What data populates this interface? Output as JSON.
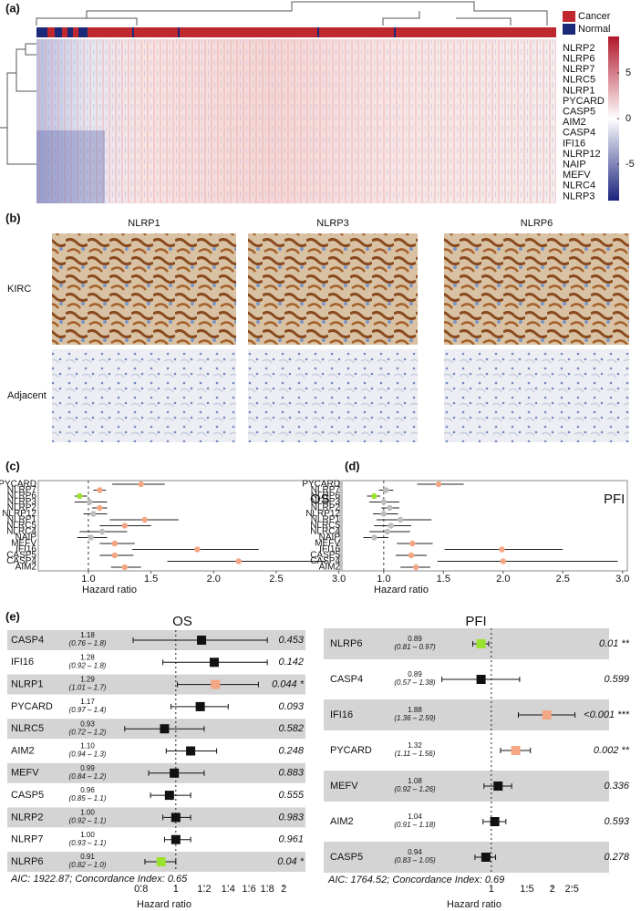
{
  "panel_a": {
    "label": "(a)",
    "legend": [
      {
        "name": "Cancer",
        "color": "#c0282f"
      },
      {
        "name": "Normal",
        "color": "#1b2a78"
      }
    ],
    "genes": [
      "NLRP2",
      "NLRP6",
      "NLRP7",
      "NLRC5",
      "NLRP1",
      "PYCARD",
      "CASP5",
      "AIM2",
      "CASP4",
      "IFI16",
      "NLRP12",
      "NAIP",
      "MEFV",
      "NLRC4",
      "NLRP3"
    ],
    "colorbar": {
      "colors": [
        "#1a237e",
        "#ffffff",
        "#b2182b"
      ],
      "lim": [
        -9,
        9
      ],
      "ticks": [
        5,
        0,
        -5
      ]
    }
  },
  "panel_b": {
    "label": "(b)",
    "columns": [
      "NLRP1",
      "NLRP3",
      "NLRP6"
    ],
    "rows": [
      "KIRC",
      "Adjacent"
    ]
  },
  "panel_c": {
    "label": "(c)",
    "title": "OS",
    "x_label": "Hazard ratio",
    "genes": [
      "PYCARD",
      "NLRP7",
      "NLRP6",
      "NLRP3",
      "NLRP2",
      "NLRP12",
      "NLRP1",
      "NLRC5",
      "NLRC4",
      "NAIP",
      "MEFV",
      "IFI16",
      "CASP5",
      "CASP4",
      "AIM2"
    ],
    "values": [
      1.42,
      1.09,
      0.93,
      1.01,
      1.09,
      1.04,
      1.45,
      1.29,
      1.11,
      1.02,
      1.21,
      1.87,
      1.21,
      2.2,
      1.29
    ],
    "ci_low": [
      1.19,
      1.04,
      0.89,
      0.89,
      1.03,
      0.96,
      1.17,
      1.09,
      0.93,
      0.91,
      1.09,
      1.35,
      1.09,
      1.63,
      1.18
    ],
    "ci_high": [
      1.61,
      1.14,
      0.99,
      1.15,
      1.15,
      1.15,
      1.72,
      1.5,
      1.31,
      1.15,
      1.37,
      2.36,
      1.36,
      2.9,
      1.42
    ],
    "point_colors": [
      "#f4a582",
      "#f4a582",
      "#9be22e",
      "#bdbdbd",
      "#f4a582",
      "#bdbdbd",
      "#f4a582",
      "#f4a582",
      "#bdbdbd",
      "#bdbdbd",
      "#f4a582",
      "#f4a582",
      "#f4a582",
      "#f4a582",
      "#f4a582"
    ],
    "xlim": [
      0.6,
      3.01
    ],
    "xticks": [
      {
        "value": 1,
        "label": "1.0"
      },
      1.5,
      {
        "value": 2,
        "label": "2.0"
      },
      2.5,
      {
        "value": 3,
        "label": "3.0"
      }
    ]
  },
  "panel_d": {
    "label": "(d)",
    "title": "PFI",
    "x_label": "Hazard ratio",
    "genes": [
      "PYCARD",
      "NLRP7",
      "NLRP6",
      "NLRP3",
      "NLRP2",
      "NLRP12",
      "NLRP1",
      "NLRC5",
      "NLRC4",
      "NAIP",
      "MEFV",
      "IFI16",
      "CASP5",
      "CASP4",
      "AIM2"
    ],
    "values": [
      1.46,
      1.02,
      0.92,
      1.0,
      1.05,
      1.0,
      1.14,
      1.06,
      1.03,
      0.92,
      1.24,
      1.99,
      1.23,
      2.0,
      1.27
    ],
    "ci_low": [
      1.28,
      0.96,
      0.86,
      0.88,
      0.98,
      0.91,
      0.94,
      0.92,
      0.88,
      0.83,
      1.11,
      1.51,
      1.1,
      1.45,
      1.14
    ],
    "ci_high": [
      1.67,
      1.08,
      0.97,
      1.13,
      1.13,
      1.12,
      1.4,
      1.23,
      1.22,
      1.04,
      1.41,
      2.5,
      1.36,
      2.96,
      1.39
    ],
    "point_colors": [
      "#f4a582",
      "#bdbdbd",
      "#9be22e",
      "#bdbdbd",
      "#bdbdbd",
      "#bdbdbd",
      "#bdbdbd",
      "#bdbdbd",
      "#bdbdbd",
      "#bdbdbd",
      "#f4a582",
      "#f4a582",
      "#f4a582",
      "#f4a582",
      "#f4a582"
    ],
    "xlim": [
      0.65,
      3.04
    ],
    "xticks": [
      {
        "value": 1,
        "label": "1.0"
      },
      1.5,
      {
        "value": 2,
        "label": "2.0"
      },
      2.5,
      {
        "value": 3,
        "label": "3.0"
      }
    ]
  },
  "panel_e": {
    "label": "(e)",
    "plots": [
      {
        "title": "OS",
        "x_label": "Hazard ratio",
        "xscale": "log",
        "genes": [
          "CASP4",
          "IFI16",
          "NLRP1",
          "PYCARD",
          "NLRC5",
          "AIM2",
          "MEFV",
          "CASP5",
          "NLRP2",
          "NLRP7",
          "NLRP6"
        ],
        "values": [
          1.18,
          1.28,
          1.29,
          1.17,
          0.93,
          1.1,
          0.99,
          0.96,
          1,
          1,
          0.91
        ],
        "value_labels": [
          "1.18",
          "1.28",
          "1.29",
          "1.17",
          "0.93",
          "1.10",
          "0.99",
          "0.96",
          "1.00",
          "1.00",
          "0.91"
        ],
        "ci_low": [
          0.76,
          0.92,
          1.01,
          0.97,
          0.72,
          0.94,
          0.84,
          0.85,
          0.92,
          0.93,
          0.82
        ],
        "ci_high": [
          1.8,
          1.8,
          1.7,
          1.4,
          1.2,
          1.3,
          1.2,
          1.1,
          1.1,
          1.1,
          1.0
        ],
        "ci_labels": [
          "(0.76 – 1.8)",
          "(0.92 – 1.8)",
          "(1.01 – 1.7)",
          "(0.97 – 1.4)",
          "(0.72 – 1.2)",
          "(0.94 – 1.3)",
          "(0.84 – 1.2)",
          "(0.85 – 1.1)",
          "(0.92 – 1.1)",
          "(0.93 – 1.1)",
          "(0.82 – 1.0)"
        ],
        "p_values": [
          "0.453",
          "0.142",
          "0.044 *",
          "0.093",
          "0.582",
          "0.248",
          "0.883",
          "0.555",
          "0.983",
          "0.961",
          "0.04 *"
        ],
        "point_colors": [
          "#111111",
          "#111111",
          "#f4a582",
          "#111111",
          "#111111",
          "#111111",
          "#111111",
          "#111111",
          "#111111",
          "#111111",
          "#9be22e"
        ],
        "note": "AIC: 1922.87; Concordance Index: 0.65",
        "xlim": [
          0.68,
          2.3
        ],
        "xticks": [
          0.8,
          1,
          1.2,
          1.4,
          1.6,
          1.8,
          2
        ]
      },
      {
        "title": "PFI",
        "x_label": "Hazard ratio",
        "xscale": "log",
        "genes": [
          "NLRP6",
          "CASP4",
          "IFI16",
          "PYCARD",
          "MEFV",
          "AIM2",
          "CASP5"
        ],
        "values": [
          0.89,
          0.89,
          1.88,
          1.32,
          1.08,
          1.04,
          0.94
        ],
        "ci_low": [
          0.81,
          0.57,
          1.36,
          1.11,
          0.92,
          0.91,
          0.83
        ],
        "ci_high": [
          0.97,
          1.38,
          2.59,
          1.56,
          1.26,
          1.18,
          1.05
        ],
        "ci_labels": [
          "(0.81 – 0.97)",
          "(0.57 – 1.38)",
          "(1.36 – 2.59)",
          "(1.11 – 1.56)",
          "(0.92 – 1.26)",
          "(0.91 – 1.18)",
          "(0.83 – 1.05)"
        ],
        "p_values": [
          "0.01 **",
          "0.599",
          "<0.001 ***",
          "0.002 **",
          "0.336",
          "0.593",
          "0.278"
        ],
        "point_colors": [
          "#9be22e",
          "#111111",
          "#f4a582",
          "#f4a582",
          "#111111",
          "#111111",
          "#111111"
        ],
        "note": "AIC: 1764.52; Concordance Index: 0.69",
        "xlim": [
          0.5,
          3.2
        ],
        "xticks": [
          1,
          1.5,
          2,
          2.5
        ]
      }
    ]
  }
}
